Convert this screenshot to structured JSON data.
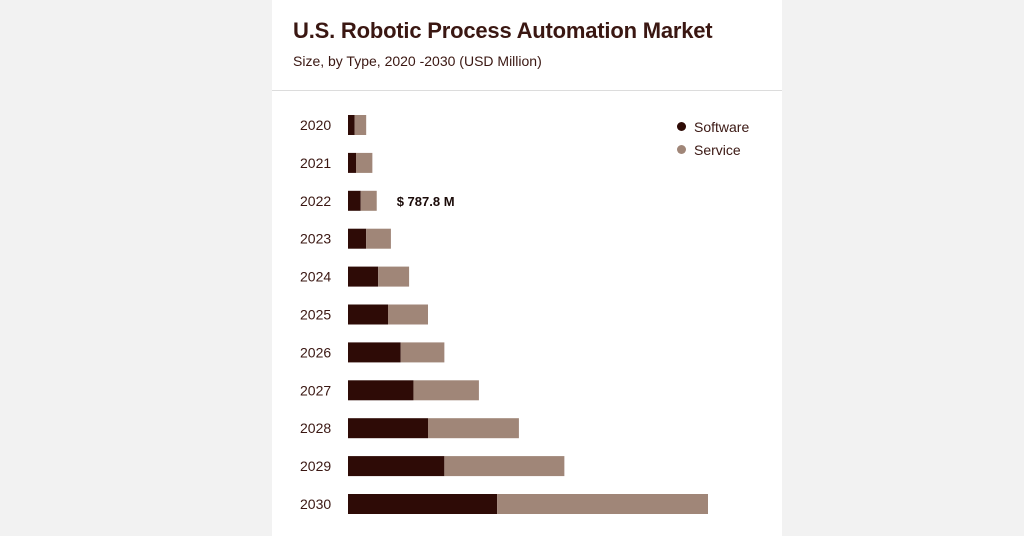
{
  "chart_data": {
    "type": "bar",
    "orientation": "horizontal",
    "stacked": true,
    "title": "U.S. Robotic Process Automation Market",
    "subtitle": "Size, by Type, 2020 -2030 (USD Million)",
    "categories": [
      "2020",
      "2021",
      "2022",
      "2023",
      "2024",
      "2025",
      "2026",
      "2027",
      "2028",
      "2029",
      "2030"
    ],
    "series": [
      {
        "name": "Software",
        "color": "#2e0b06",
        "values": [
          180,
          220,
          350,
          500,
          830,
          1100,
          1450,
          1800,
          2200,
          2650,
          4100
        ]
      },
      {
        "name": "Service",
        "color": "#a08678",
        "values": [
          320,
          450,
          440,
          680,
          850,
          1100,
          1200,
          1800,
          2500,
          3300,
          5800
        ]
      }
    ],
    "xlim": [
      0,
      11000
    ],
    "grid": false,
    "legend_position": "top-right",
    "annotations": [
      {
        "category": "2022",
        "text": "$ 787.8 M"
      }
    ]
  }
}
